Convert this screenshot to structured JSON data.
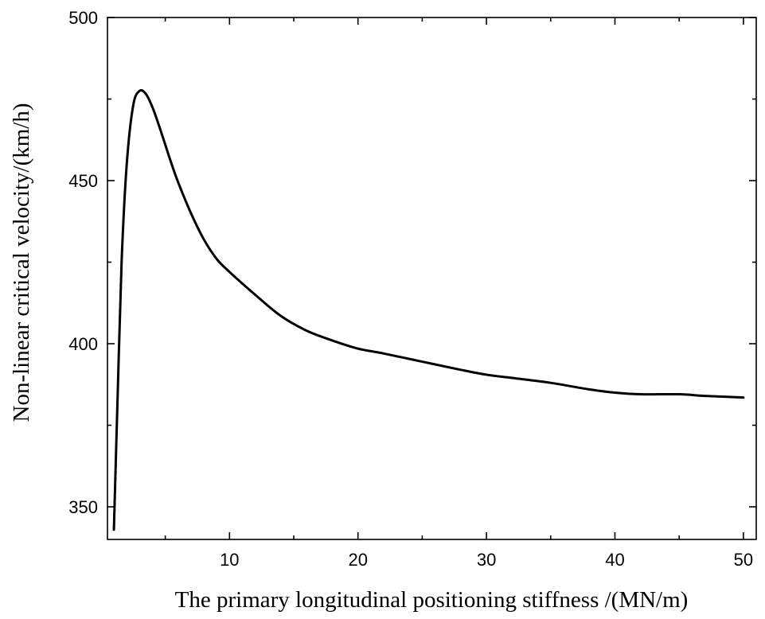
{
  "chart_data": {
    "type": "line",
    "title": "",
    "xlabel": "The primary longitudinal positioning stiffness /(MN/m)",
    "ylabel": "Non-linear critical velocity/(km/h)",
    "xlim": [
      0.5,
      51
    ],
    "ylim": [
      340,
      500
    ],
    "x_ticks": [
      10,
      20,
      30,
      40,
      50
    ],
    "x_minor_ticks": [
      5,
      15,
      25,
      35,
      45
    ],
    "y_ticks": [
      350,
      400,
      450,
      500
    ],
    "y_minor_ticks": [
      375,
      425,
      475
    ],
    "grid": false,
    "series": [
      {
        "color": "#000000",
        "x": [
          1.0,
          1.3,
          1.6,
          2.0,
          2.5,
          3.0,
          3.5,
          4.0,
          4.5,
          5.0,
          5.5,
          6.0,
          7.0,
          8.0,
          9.0,
          10.0,
          12.0,
          14.0,
          16.0,
          18.0,
          20.0,
          22.0,
          25.0,
          28.0,
          30.0,
          32.0,
          35.0,
          38.0,
          40.0,
          42.0,
          45.0,
          47.0,
          50.0
        ],
        "values": [
          343,
          385,
          425,
          455,
          473,
          477.5,
          476.5,
          472.5,
          467,
          461,
          455,
          449.5,
          440,
          432,
          426,
          422,
          415,
          408.5,
          404,
          401,
          398.5,
          397,
          394.5,
          392,
          390.5,
          389.5,
          388,
          386,
          385,
          384.5,
          384.5,
          384,
          383.5
        ]
      }
    ]
  }
}
